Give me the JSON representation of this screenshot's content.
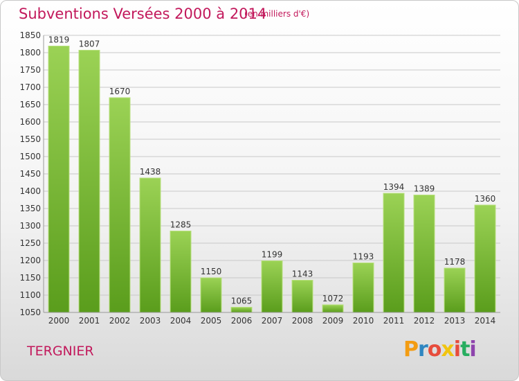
{
  "header": {
    "title": "Subventions Versées 2000 à 2014",
    "subtitle": "(en milliers d'€)"
  },
  "footer": {
    "place": "TERGNIER",
    "brand": "Proxiti",
    "brand_letters": [
      "P",
      "r",
      "o",
      "x",
      "i",
      "t",
      "i"
    ],
    "brand_colors": [
      "#f39c12",
      "#2e86c1",
      "#e74c3c",
      "#f1c40f",
      "#e74c3c",
      "#27ae60",
      "#8e44ad"
    ]
  },
  "colors": {
    "title": "#c2185b",
    "bar_top": "#9bd255",
    "bar_bottom": "#5a9d1c",
    "grid": "#c8c8c8"
  },
  "chart_data": {
    "type": "bar",
    "title": "Subventions Versées 2000 à 2014",
    "subtitle": "(en milliers d'€)",
    "categories": [
      "2000",
      "2001",
      "2002",
      "2003",
      "2004",
      "2005",
      "2006",
      "2007",
      "2008",
      "2009",
      "2010",
      "2011",
      "2012",
      "2013",
      "2014"
    ],
    "values": [
      1819,
      1807,
      1670,
      1438,
      1285,
      1150,
      1065,
      1199,
      1143,
      1072,
      1193,
      1394,
      1389,
      1178,
      1360
    ],
    "ylim": [
      1050,
      1850
    ],
    "yticks": [
      1050,
      1100,
      1150,
      1200,
      1250,
      1300,
      1350,
      1400,
      1450,
      1500,
      1550,
      1600,
      1650,
      1700,
      1750,
      1800,
      1850
    ],
    "grid": true
  }
}
